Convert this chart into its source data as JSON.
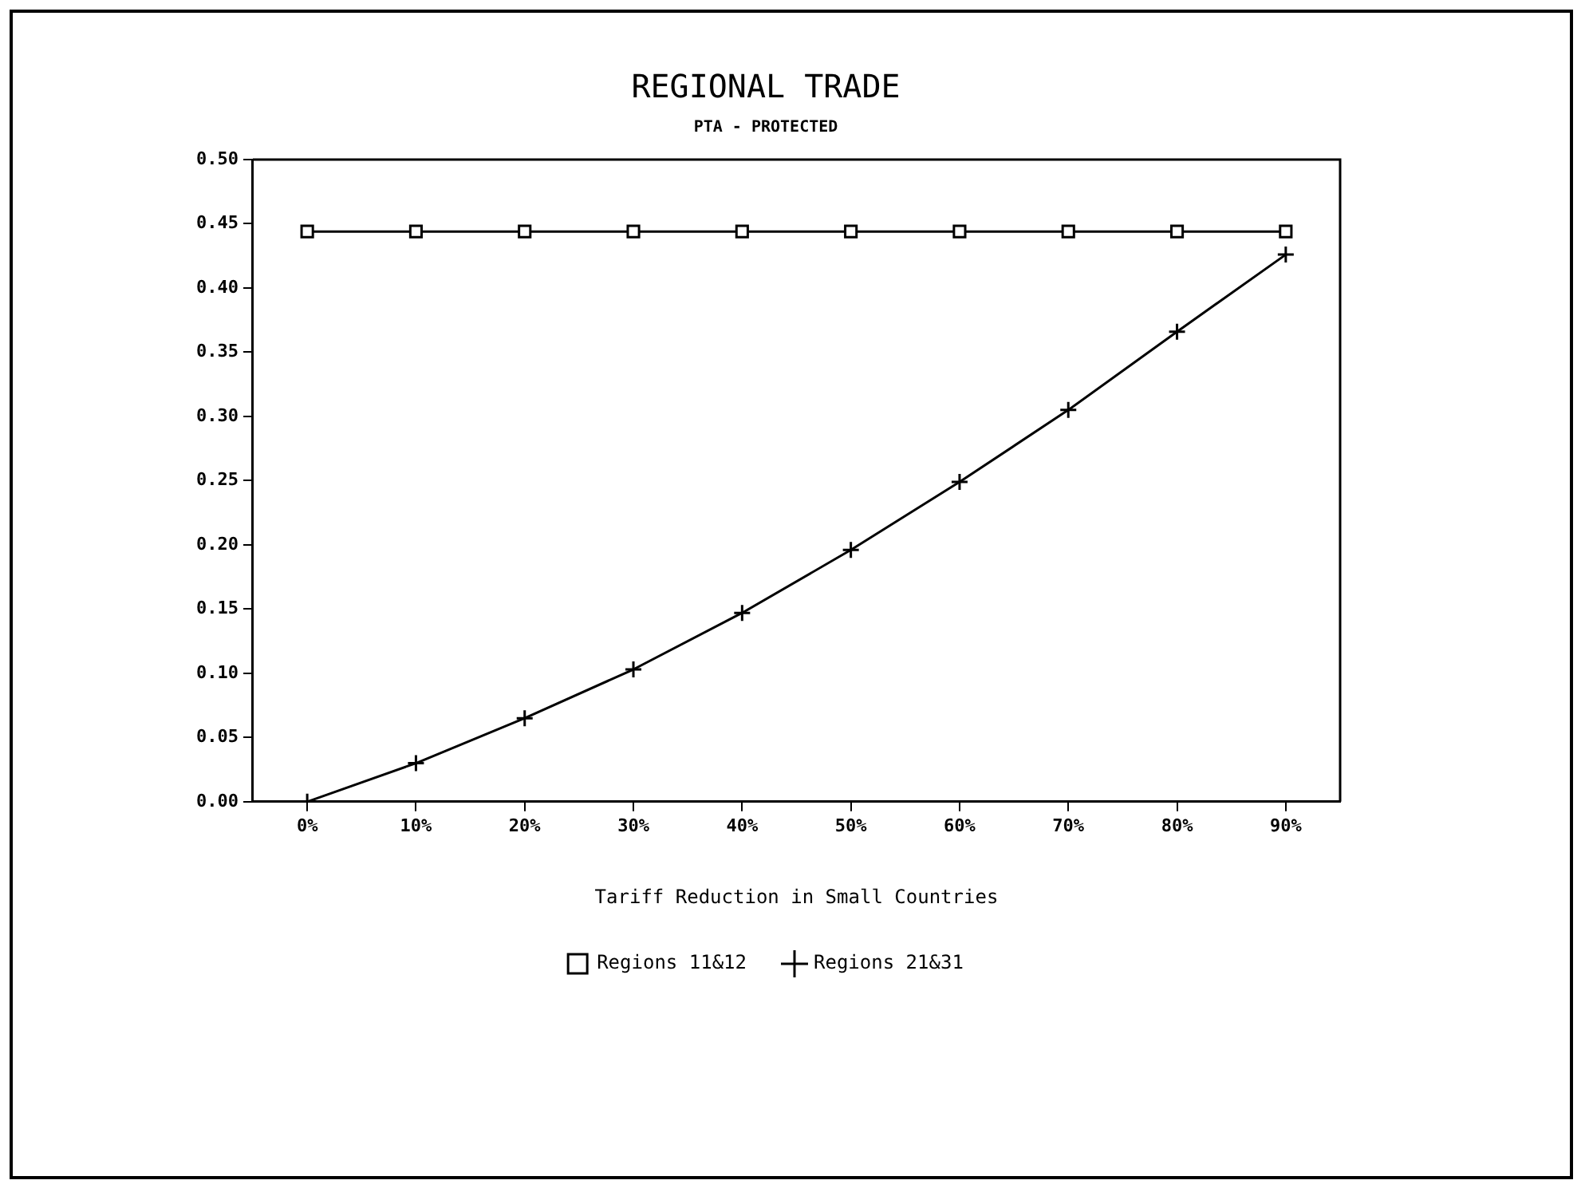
{
  "chart_data": {
    "type": "line",
    "title": "REGIONAL TRADE",
    "subtitle": "PTA - PROTECTED",
    "xlabel": "Tariff Reduction in Small Countries",
    "categories": [
      "0%",
      "10%",
      "20%",
      "30%",
      "40%",
      "50%",
      "60%",
      "70%",
      "80%",
      "90%"
    ],
    "series": [
      {
        "name": "Regions 11&12",
        "color": "#000000",
        "marker": "square",
        "values": [
          0.444,
          0.444,
          0.444,
          0.444,
          0.444,
          0.444,
          0.444,
          0.444,
          0.444,
          0.444
        ]
      },
      {
        "name": "Regions 21&31",
        "color": "#000000",
        "marker": "cross",
        "values": [
          0,
          0.03,
          0.065,
          0.103,
          0.147,
          0.196,
          0.249,
          0.305,
          0.366,
          0.426
        ]
      }
    ],
    "ylim": [
      0,
      0.5
    ],
    "yticks": [
      {
        "value": 0,
        "label": "0.00"
      },
      {
        "value": 0.05,
        "label": "0.05"
      },
      {
        "value": 0.1,
        "label": "0.10"
      },
      {
        "value": 0.15,
        "label": "0.15"
      },
      {
        "value": 0.2,
        "label": "0.20"
      },
      {
        "value": 0.25,
        "label": "0.25"
      },
      {
        "value": 0.3,
        "label": "0.30"
      },
      {
        "value": 0.35,
        "label": "0.35"
      },
      {
        "value": 0.4,
        "label": "0.40"
      },
      {
        "value": 0.45,
        "label": "0.45"
      },
      {
        "value": 0.5,
        "label": "0.50"
      }
    ],
    "grid": false,
    "legend": "bottom",
    "line_style": "solid"
  }
}
